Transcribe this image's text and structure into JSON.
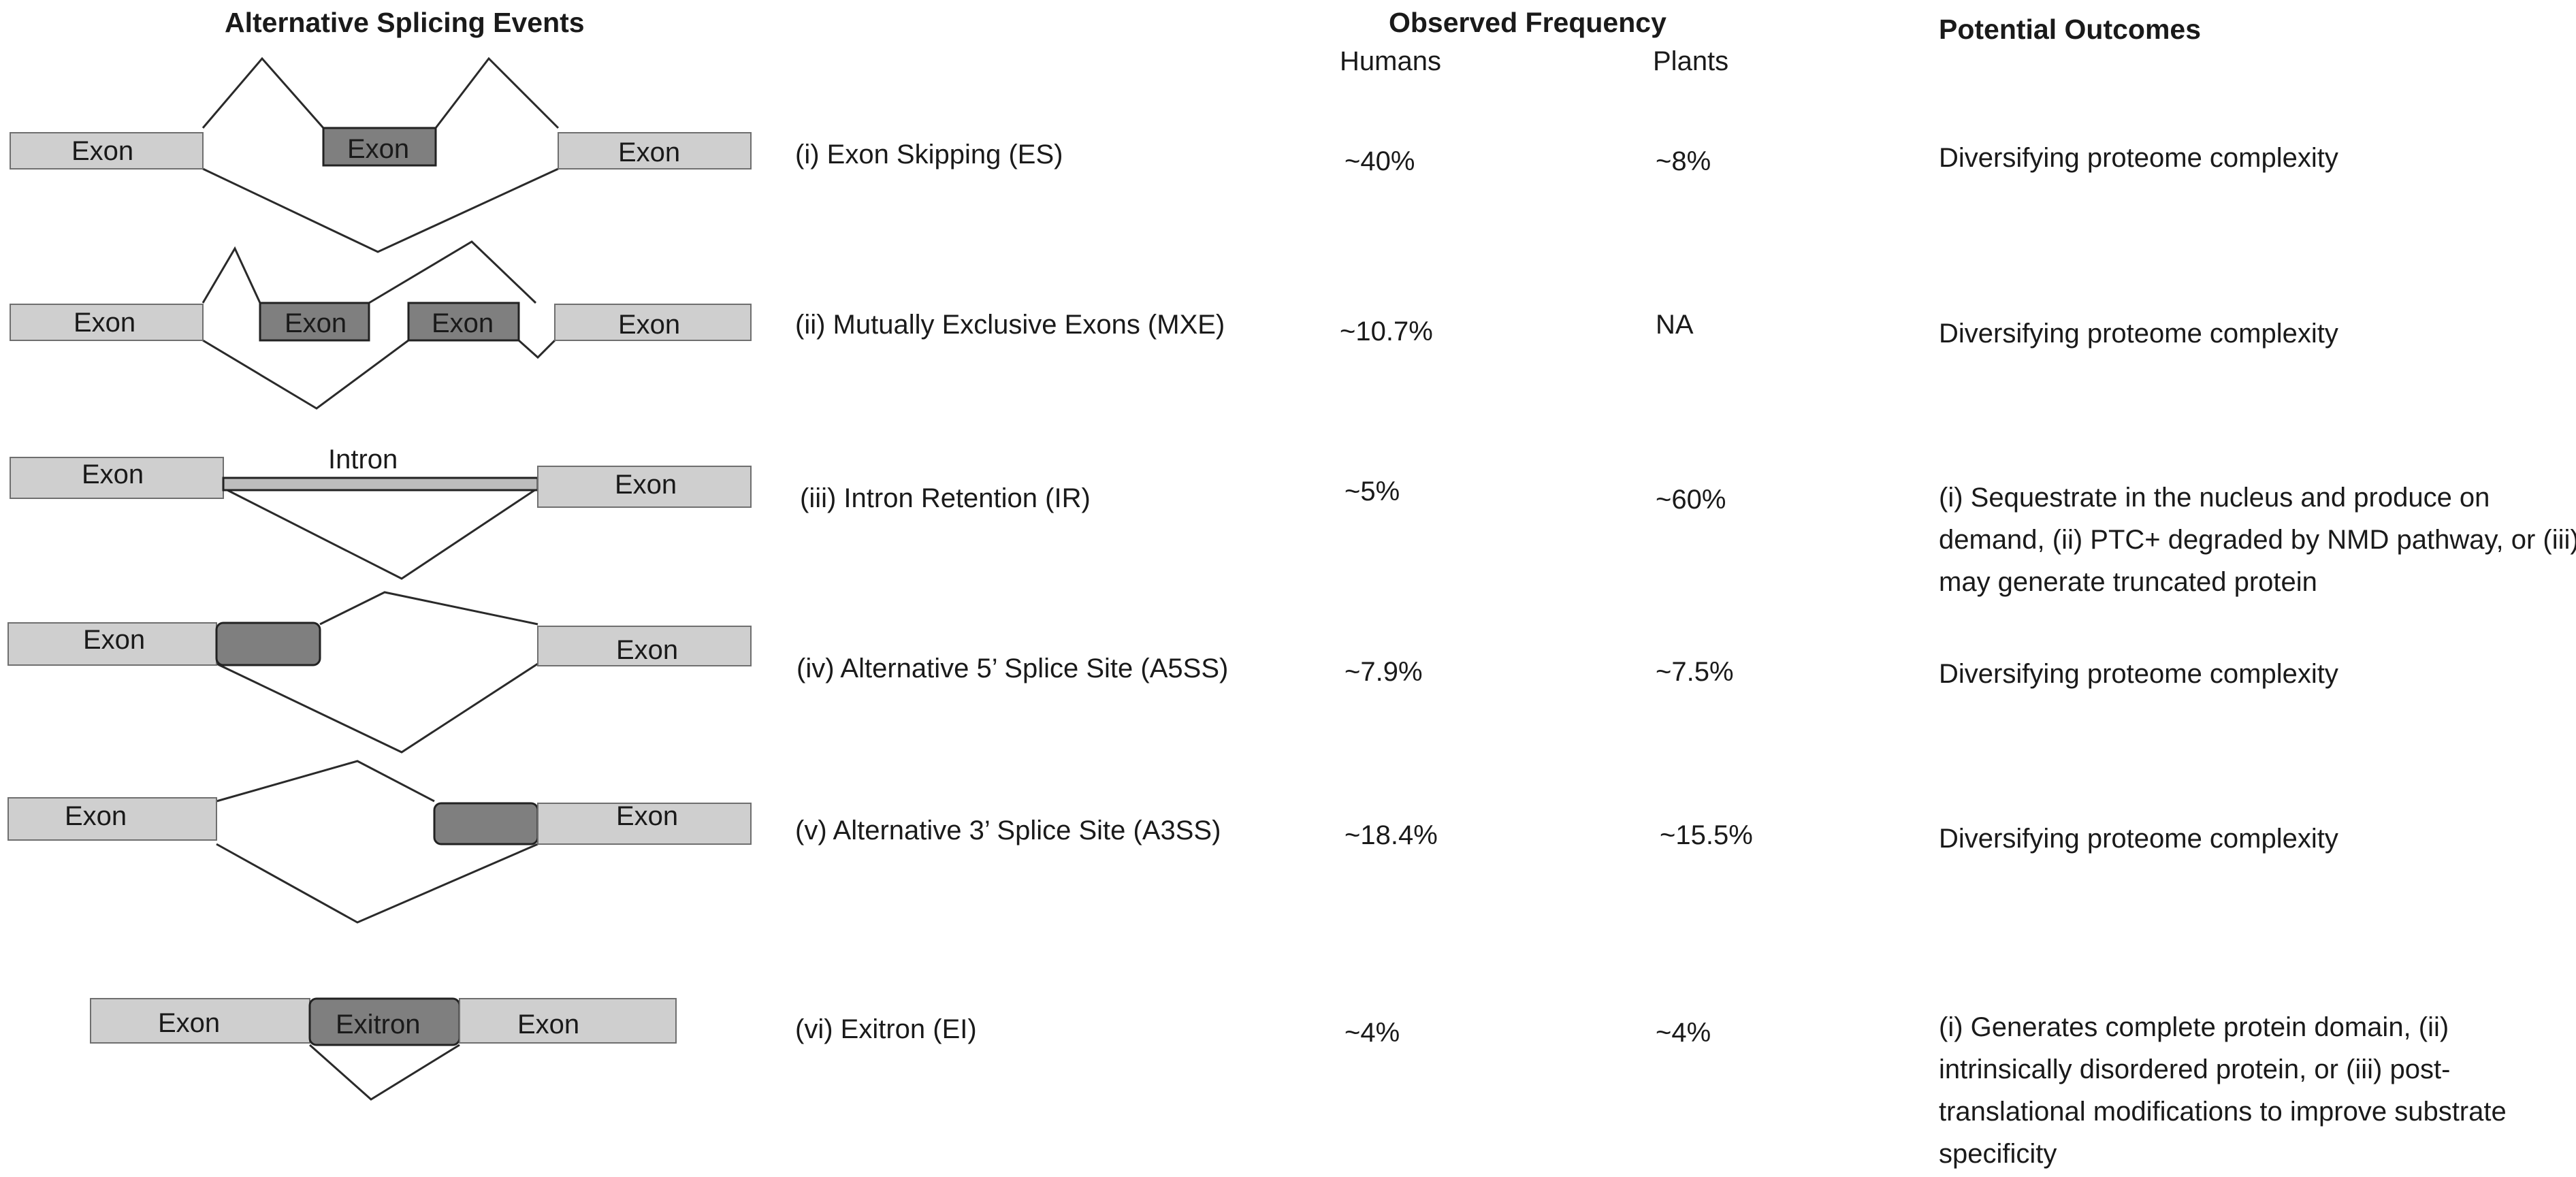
{
  "headers": {
    "events": "Alternative Splicing Events",
    "frequency": "Observed Frequency",
    "humans": "Humans",
    "plants": "Plants",
    "outcomes": "Potential Outcomes"
  },
  "diagram_labels": {
    "exon": "Exon",
    "intron": "Intron",
    "exitron": "Exitron"
  },
  "rows": [
    {
      "event": "(i) Exon Skipping (ES)",
      "humans": "~40%",
      "plants": "~8%",
      "outcome": "Diversifying proteome complexity"
    },
    {
      "event": "(ii) Mutually Exclusive Exons (MXE)",
      "humans": "~10.7%",
      "plants": "NA",
      "outcome": "Diversifying proteome complexity"
    },
    {
      "event": "(iii) Intron Retention (IR)",
      "humans": "~5%",
      "plants": "~60%",
      "outcome": "(i) Sequestrate in the nucleus and produce on demand, (ii) PTC+ degraded by NMD pathway, or (iii) may generate  truncated protein"
    },
    {
      "event": "(iv) Alternative 5’ Splice Site (A5SS)",
      "humans": "~7.9%",
      "plants": "~7.5%",
      "outcome": "Diversifying proteome complexity"
    },
    {
      "event": "(v) Alternative 3’ Splice Site (A3SS)",
      "humans": "~18.4%",
      "plants": "~15.5%",
      "outcome": "Diversifying proteome complexity"
    },
    {
      "event": "(vi) Exitron (EI)",
      "humans": "~4%",
      "plants": "~4%",
      "outcome": "(i) Generates complete protein domain, (ii) intrinsically disordered protein, or (iii) post-translational modifications to improve substrate specificity"
    }
  ],
  "colors": {
    "exon_light": "#cfcfcf",
    "exon_dark": "#7f7f7f",
    "line": "#2a2a2a"
  }
}
